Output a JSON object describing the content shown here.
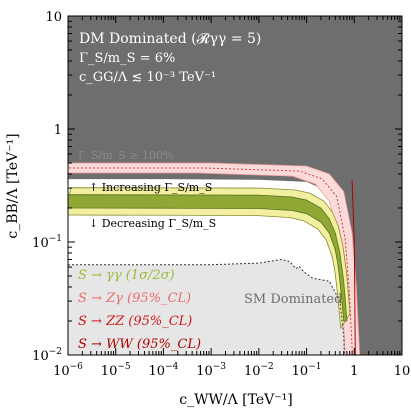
{
  "chart_data": {
    "type": "area",
    "xlabel": "c_WW/Λ [TeV⁻¹]",
    "ylabel": "c_BB/Λ [TeV⁻¹]",
    "xscale": "log",
    "yscale": "log",
    "xlim": [
      1e-06,
      10
    ],
    "ylim": [
      0.01,
      10
    ],
    "x_ticks": [
      {
        "v": 1e-06,
        "base": "10",
        "exp": "−6"
      },
      {
        "v": 1e-05,
        "base": "10",
        "exp": "−5"
      },
      {
        "v": 0.0001,
        "base": "10",
        "exp": "−4"
      },
      {
        "v": 0.001,
        "base": "10",
        "exp": "−3"
      },
      {
        "v": 0.01,
        "base": "10",
        "exp": "−2"
      },
      {
        "v": 0.1,
        "base": "10",
        "exp": "−1"
      },
      {
        "v": 1,
        "base": "1",
        "exp": ""
      },
      {
        "v": 10,
        "base": "10",
        "exp": ""
      }
    ],
    "y_ticks": [
      {
        "v": 0.01,
        "base": "10",
        "exp": "−2"
      },
      {
        "v": 0.1,
        "base": "10",
        "exp": "−1"
      },
      {
        "v": 1,
        "base": "1",
        "exp": ""
      },
      {
        "v": 10,
        "base": "10",
        "exp": ""
      }
    ],
    "header": {
      "line1": "DM Dominated (𝓡γγ = 5)",
      "line2": "Γ_S/m_S = 6%",
      "line3": "c_GG/Λ ≲ 10⁻³ TeV⁻¹"
    },
    "annotations": {
      "width_limit": "Γ_S/m_S ≥ 100%",
      "increasing": "↑ Increasing Γ_S/m_S",
      "decreasing": "↓ Decreasing Γ_S/m_S",
      "sm_dominated": "SM Dominated"
    },
    "legend": [
      {
        "label": "S → γγ (1σ/2σ)",
        "color": "#9bb93a"
      },
      {
        "label": "S → Zγ (95%_CL)",
        "color": "#ee6a6a"
      },
      {
        "label": "S → ZZ (95%_CL)",
        "color": "#d01818"
      },
      {
        "label": "S → WW (95%_CL)",
        "color": "#b00000"
      }
    ],
    "regions": {
      "dm_dominated_color": "#6e6e6e",
      "sm_dominated_color": "#e6e6e6",
      "gamma_1sigma_color": "#8ea735",
      "gamma_2sigma_color": "#f2f0a0",
      "zgamma_color": "#fbdada"
    },
    "series": [
      {
        "name": "width_upper_boundary",
        "x": [
          1e-06,
          0.0001,
          0.01,
          0.1,
          0.2,
          0.35,
          0.5,
          0.7,
          0.85,
          1.0
        ],
        "y": [
          0.36,
          0.36,
          0.355,
          0.34,
          0.3,
          0.24,
          0.17,
          0.09,
          0.04,
          0.01
        ]
      },
      {
        "name": "width_lower_boundary",
        "x": [
          1e-06,
          0.0001,
          0.001,
          0.01,
          0.03,
          0.045,
          0.06,
          0.07,
          0.08,
          0.09
        ],
        "y": [
          0.063,
          0.063,
          0.063,
          0.065,
          0.07,
          0.067,
          0.058,
          0.061,
          0.057,
          0.054
        ]
      },
      {
        "name": "gamma_1sigma_upper",
        "x": [
          1e-06,
          0.01,
          0.05,
          0.1,
          0.2,
          0.3,
          0.4,
          0.5,
          0.6,
          0.65,
          0.7
        ],
        "y": [
          0.262,
          0.26,
          0.25,
          0.235,
          0.2,
          0.16,
          0.12,
          0.08,
          0.045,
          0.03,
          0.02
        ]
      },
      {
        "name": "gamma_1sigma_lower",
        "x": [
          1e-06,
          0.01,
          0.05,
          0.1,
          0.2,
          0.3,
          0.4,
          0.45,
          0.5,
          0.55,
          0.6
        ],
        "y": [
          0.2,
          0.198,
          0.19,
          0.178,
          0.15,
          0.12,
          0.085,
          0.065,
          0.045,
          0.03,
          0.02
        ]
      },
      {
        "name": "zgamma_band",
        "x": [
          1e-06,
          0.001,
          0.1,
          0.3,
          0.6,
          0.9,
          1.1,
          1.3
        ],
        "y": [
          0.5,
          0.5,
          0.47,
          0.4,
          0.28,
          0.12,
          0.04,
          0.01
        ]
      }
    ]
  }
}
